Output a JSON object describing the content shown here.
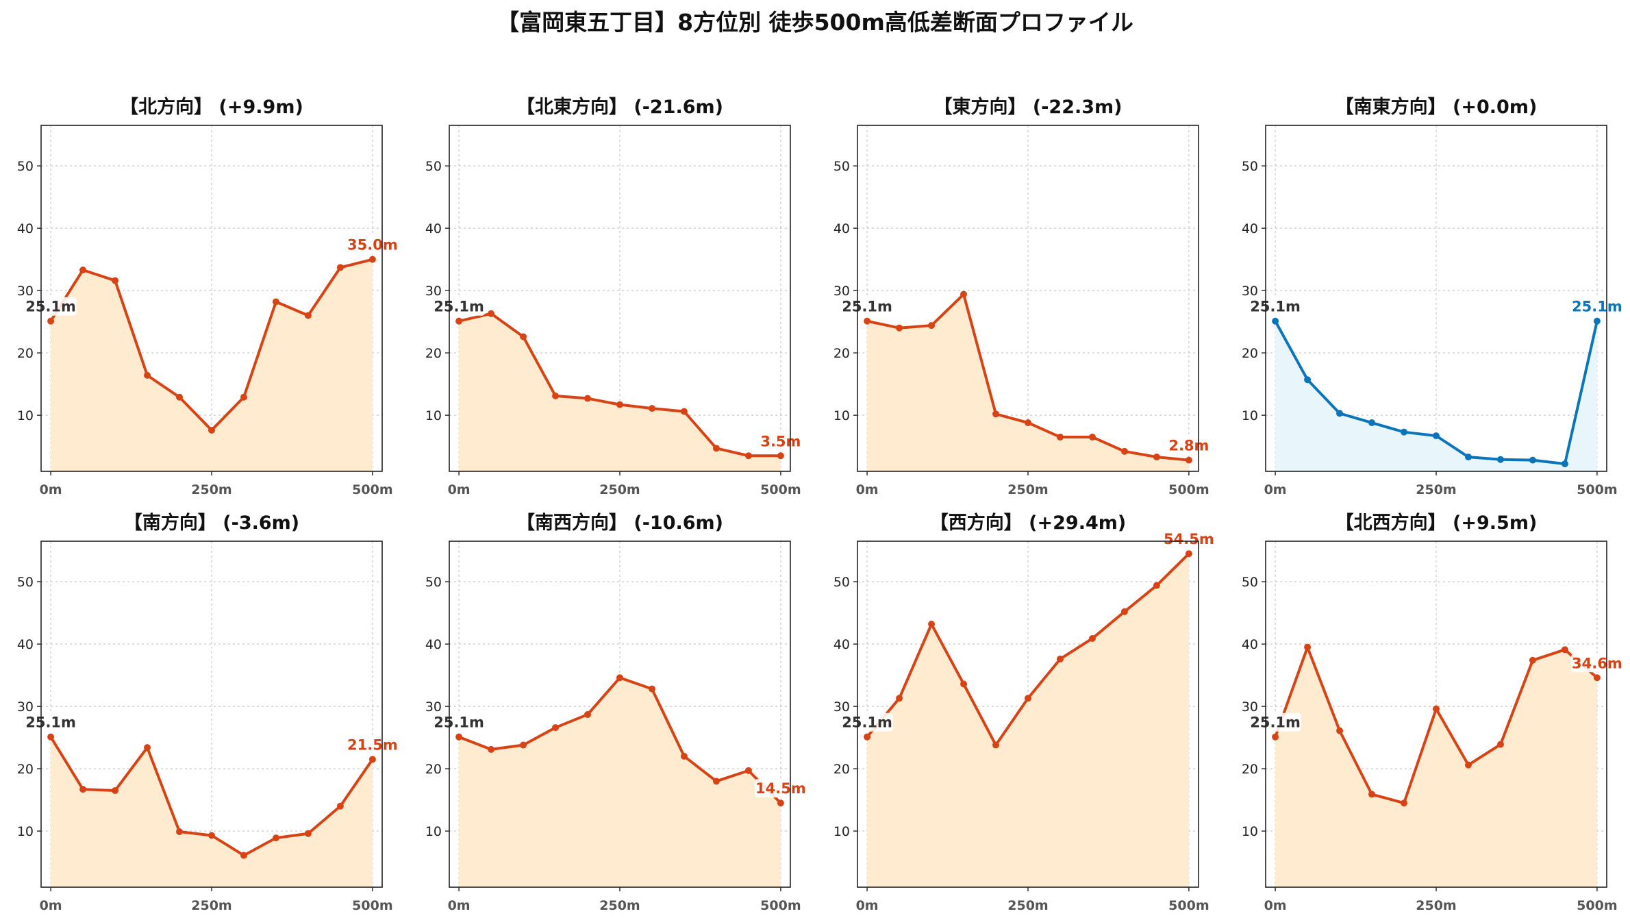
{
  "figure": {
    "title": "【富岡東五丁目】8方位別 徒歩500m高低差断面プロファイル"
  },
  "colors": {
    "loss_line": "#d84315",
    "loss_fill": "#ffecd0",
    "flat_line": "#0a75bb",
    "flat_fill": "#e8f6fc",
    "start_label": "#333333"
  },
  "chart_data": [
    {
      "type": "area",
      "title": "【北方向】 (+9.9m)",
      "theme": "warm",
      "x": [
        0,
        50,
        100,
        150,
        200,
        250,
        300,
        350,
        400,
        450,
        500
      ],
      "values": [
        25.1,
        33.3,
        31.6,
        16.4,
        12.9,
        7.6,
        12.9,
        28.2,
        26.0,
        33.7,
        35.0
      ],
      "start_label": "25.1m",
      "end_label": "35.0m",
      "xticks": [
        "0m",
        "250m",
        "500m"
      ],
      "yticks": [
        "10",
        "20",
        "30",
        "40",
        "50"
      ],
      "xlim": [
        -15,
        515
      ],
      "ylim": [
        1,
        56.5
      ],
      "xlabel": "",
      "ylabel": "",
      "grid": true
    },
    {
      "type": "area",
      "title": "【北東方向】 (-21.6m)",
      "theme": "warm",
      "x": [
        0,
        50,
        100,
        150,
        200,
        250,
        300,
        350,
        400,
        450,
        500
      ],
      "values": [
        25.1,
        26.3,
        22.6,
        13.1,
        12.7,
        11.7,
        11.1,
        10.6,
        4.7,
        3.5,
        3.5
      ],
      "start_label": "25.1m",
      "end_label": "3.5m",
      "xticks": [
        "0m",
        "250m",
        "500m"
      ],
      "yticks": [
        "10",
        "20",
        "30",
        "40",
        "50"
      ],
      "xlim": [
        -15,
        515
      ],
      "ylim": [
        1,
        56.5
      ],
      "xlabel": "",
      "ylabel": "",
      "grid": true
    },
    {
      "type": "area",
      "title": "【東方向】 (-22.3m)",
      "theme": "warm",
      "x": [
        0,
        50,
        100,
        150,
        200,
        250,
        300,
        350,
        400,
        450,
        500
      ],
      "values": [
        25.1,
        24.0,
        24.4,
        29.4,
        10.2,
        8.8,
        6.5,
        6.5,
        4.2,
        3.3,
        2.8
      ],
      "start_label": "25.1m",
      "end_label": "2.8m",
      "xticks": [
        "0m",
        "250m",
        "500m"
      ],
      "yticks": [
        "10",
        "20",
        "30",
        "40",
        "50"
      ],
      "xlim": [
        -15,
        515
      ],
      "ylim": [
        1,
        56.5
      ],
      "xlabel": "",
      "ylabel": "",
      "grid": true
    },
    {
      "type": "area",
      "title": "【南東方向】 (+0.0m)",
      "theme": "cool",
      "x": [
        0,
        50,
        100,
        150,
        200,
        250,
        300,
        350,
        400,
        450,
        500
      ],
      "values": [
        25.1,
        15.7,
        10.3,
        8.8,
        7.3,
        6.7,
        3.3,
        2.9,
        2.8,
        2.2,
        25.1
      ],
      "start_label": "25.1m",
      "end_label": "25.1m",
      "xticks": [
        "0m",
        "250m",
        "500m"
      ],
      "yticks": [
        "10",
        "20",
        "30",
        "40",
        "50"
      ],
      "xlim": [
        -15,
        515
      ],
      "ylim": [
        1,
        56.5
      ],
      "xlabel": "",
      "ylabel": "",
      "grid": true
    },
    {
      "type": "area",
      "title": "【南方向】 (-3.6m)",
      "theme": "warm",
      "x": [
        0,
        50,
        100,
        150,
        200,
        250,
        300,
        350,
        400,
        450,
        500
      ],
      "values": [
        25.1,
        16.7,
        16.5,
        23.4,
        9.9,
        9.3,
        6.1,
        8.9,
        9.6,
        14.0,
        21.5
      ],
      "start_label": "25.1m",
      "end_label": "21.5m",
      "xticks": [
        "0m",
        "250m",
        "500m"
      ],
      "yticks": [
        "10",
        "20",
        "30",
        "40",
        "50"
      ],
      "xlim": [
        -15,
        515
      ],
      "ylim": [
        1,
        56.5
      ],
      "xlabel": "",
      "ylabel": "",
      "grid": true
    },
    {
      "type": "area",
      "title": "【南西方向】 (-10.6m)",
      "theme": "warm",
      "x": [
        0,
        50,
        100,
        150,
        200,
        250,
        300,
        350,
        400,
        450,
        500
      ],
      "values": [
        25.1,
        23.1,
        23.8,
        26.6,
        28.7,
        34.6,
        32.8,
        22.0,
        18.0,
        19.7,
        14.5
      ],
      "start_label": "25.1m",
      "end_label": "14.5m",
      "xticks": [
        "0m",
        "250m",
        "500m"
      ],
      "yticks": [
        "10",
        "20",
        "30",
        "40",
        "50"
      ],
      "xlim": [
        -15,
        515
      ],
      "ylim": [
        1,
        56.5
      ],
      "xlabel": "",
      "ylabel": "",
      "grid": true
    },
    {
      "type": "area",
      "title": "【西方向】 (+29.4m)",
      "theme": "warm",
      "x": [
        0,
        50,
        100,
        150,
        200,
        250,
        300,
        350,
        400,
        450,
        500
      ],
      "values": [
        25.1,
        31.3,
        43.2,
        33.6,
        23.8,
        31.3,
        37.6,
        40.9,
        45.2,
        49.4,
        54.5
      ],
      "start_label": "25.1m",
      "end_label": "54.5m",
      "xticks": [
        "0m",
        "250m",
        "500m"
      ],
      "yticks": [
        "10",
        "20",
        "30",
        "40",
        "50"
      ],
      "xlim": [
        -15,
        515
      ],
      "ylim": [
        1,
        56.5
      ],
      "xlabel": "",
      "ylabel": "",
      "grid": true
    },
    {
      "type": "area",
      "title": "【北西方向】 (+9.5m)",
      "theme": "warm",
      "x": [
        0,
        50,
        100,
        150,
        200,
        250,
        300,
        350,
        400,
        450,
        500
      ],
      "values": [
        25.1,
        39.5,
        26.1,
        15.9,
        14.5,
        29.6,
        20.6,
        23.9,
        37.4,
        39.1,
        34.6
      ],
      "start_label": "25.1m",
      "end_label": "34.6m",
      "xticks": [
        "0m",
        "250m",
        "500m"
      ],
      "yticks": [
        "10",
        "20",
        "30",
        "40",
        "50"
      ],
      "xlim": [
        -15,
        515
      ],
      "ylim": [
        1,
        56.5
      ],
      "xlabel": "",
      "ylabel": "",
      "grid": true
    }
  ]
}
